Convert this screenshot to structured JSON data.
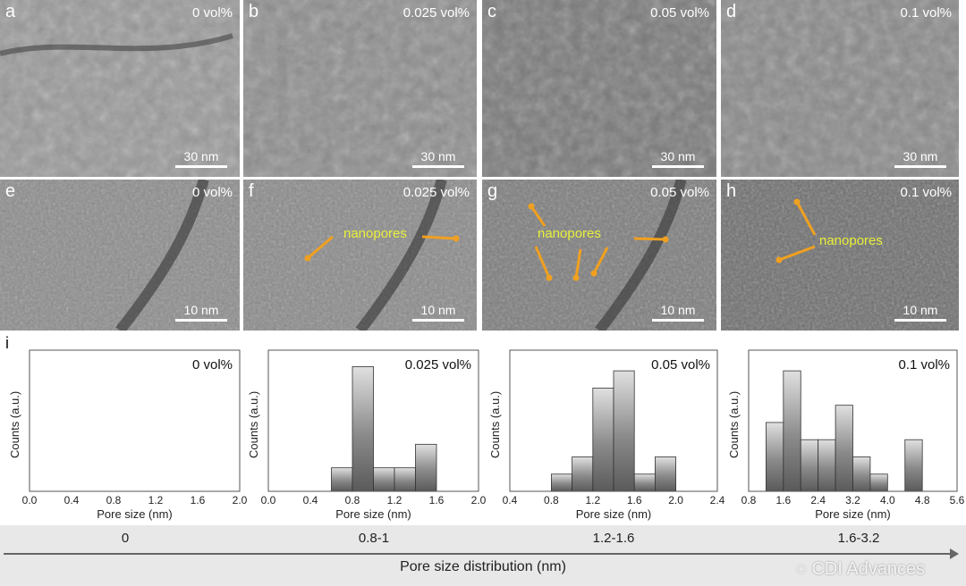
{
  "tem_panels": [
    {
      "letter": "a",
      "conc": "0 vol%",
      "scale": "30 nm"
    },
    {
      "letter": "b",
      "conc": "0.025 vol%",
      "scale": "30 nm"
    },
    {
      "letter": "c",
      "conc": "0.05 vol%",
      "scale": "30 nm"
    },
    {
      "letter": "d",
      "conc": "0.1 vol%",
      "scale": "30 nm"
    },
    {
      "letter": "e",
      "conc": "0 vol%",
      "scale": "10 nm"
    },
    {
      "letter": "f",
      "conc": "0.025 vol%",
      "scale": "10 nm",
      "annotation": "nanopores"
    },
    {
      "letter": "g",
      "conc": "0.05 vol%",
      "scale": "10 nm",
      "annotation": "nanopores"
    },
    {
      "letter": "h",
      "conc": "0.1 vol%",
      "scale": "10 nm",
      "annotation": "nanopores"
    }
  ],
  "panel_i_label": "i",
  "colors": {
    "arrow": "#f0a020",
    "annotation": "#e8f03a"
  },
  "chart_data": [
    {
      "type": "bar",
      "title": "0 vol%",
      "xlabel": "Pore size (nm)",
      "ylabel": "Counts (a.u.)",
      "xlim": [
        0,
        2.0
      ],
      "xticks": [
        "0.0",
        "0.4",
        "0.8",
        "1.2",
        "1.6",
        "2.0"
      ],
      "bin_edges": [],
      "values": [],
      "ylim": [
        0,
        7.5
      ]
    },
    {
      "type": "bar",
      "title": "0.025 vol%",
      "xlabel": "Pore size (nm)",
      "ylabel": "Counts (a.u.)",
      "xlim": [
        0,
        2.0
      ],
      "xticks": [
        "0.0",
        "0.4",
        "0.8",
        "1.2",
        "1.6",
        "2.0"
      ],
      "bin_edges": [
        0.6,
        0.8,
        1.0,
        1.2,
        1.4,
        1.6
      ],
      "values": [
        1,
        5.3,
        1,
        1,
        2
      ],
      "ylim": [
        0,
        6
      ]
    },
    {
      "type": "bar",
      "title": "0.05 vol%",
      "xlabel": "Pore size (nm)",
      "ylabel": "Counts (a.u.)",
      "xlim": [
        0.4,
        2.4
      ],
      "xticks": [
        "0.4",
        "0.8",
        "1.2",
        "1.6",
        "2.0",
        "2.4"
      ],
      "bin_edges": [
        0.8,
        1.0,
        1.2,
        1.4,
        1.6,
        1.8,
        2.0
      ],
      "values": [
        1,
        2,
        6,
        7,
        1,
        2
      ],
      "ylim": [
        0,
        8.2
      ]
    },
    {
      "type": "bar",
      "title": "0.1 vol%",
      "xlabel": "Pore size (nm)",
      "ylabel": "Counts (a.u.)",
      "xlim": [
        0.8,
        5.6
      ],
      "xticks": [
        "0.8",
        "1.6",
        "2.4",
        "3.2",
        "4.0",
        "4.8",
        "5.6"
      ],
      "bin_edges": [
        1.2,
        1.6,
        2.0,
        2.4,
        2.8,
        3.2,
        3.6,
        4.0,
        4.4,
        4.8
      ],
      "values": [
        4,
        7,
        3,
        3,
        5,
        2,
        1,
        0,
        3
      ],
      "ylim": [
        0,
        8.2
      ]
    }
  ],
  "summary": {
    "ranges": [
      "0",
      "0.8-1",
      "1.2-1.6",
      "1.6-3.2"
    ],
    "axis_label": "Pore size distribution (nm)",
    "watermark": "CDI Advances"
  }
}
